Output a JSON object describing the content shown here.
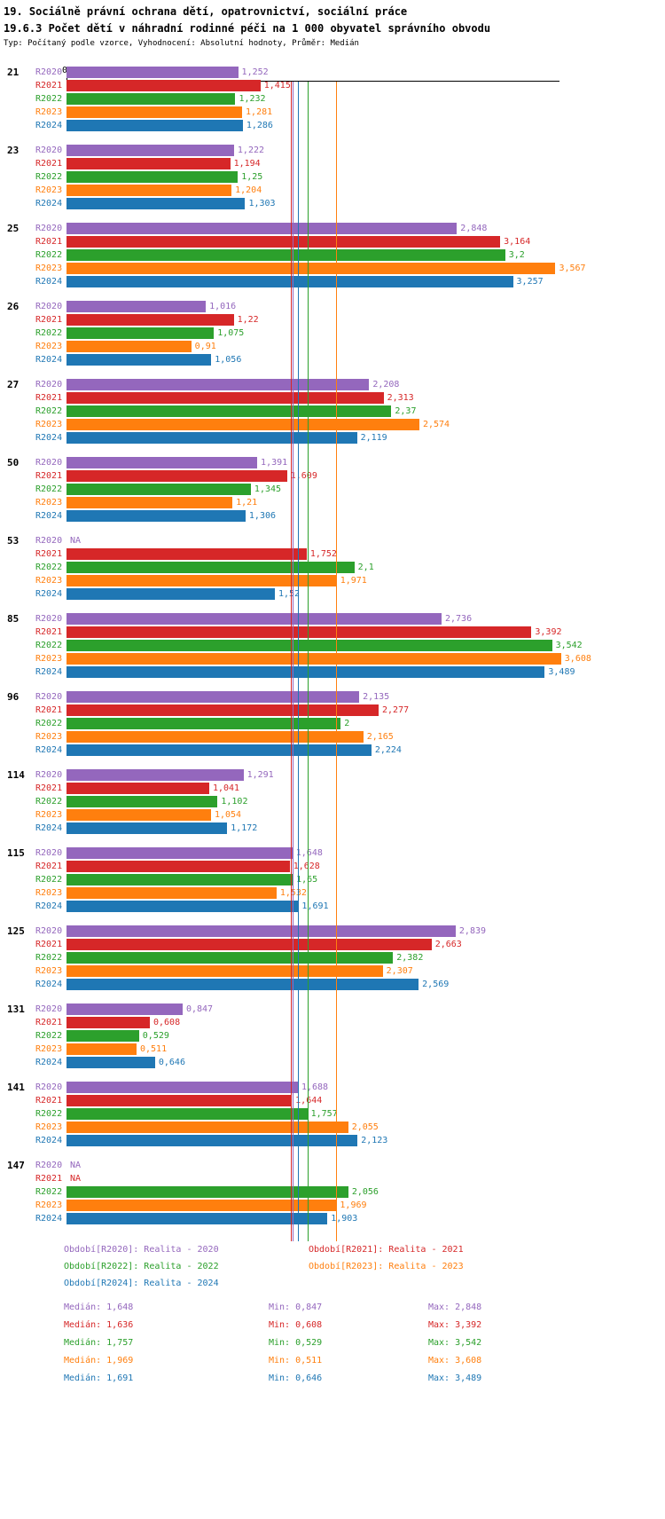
{
  "header": {
    "title1": "19. Sociálně právní ochrana dětí, opatrovnictví, sociální práce",
    "title2": "19.6.3 Počet dětí v náhradní rodinné péči na 1 000 obyvatel správního obvodu",
    "subtitle": "Typ: Počítaný podle vzorce, Vyhodnocení: Absolutní hodnoty, Průměr: Medián"
  },
  "chart_data": {
    "type": "bar",
    "orientation": "horizontal",
    "value_axis": {
      "zero_label": "0",
      "xlim": [
        0,
        3.608
      ]
    },
    "decimal_separator": ",",
    "na_label": "NA",
    "grid": false,
    "legend_position": "bottom",
    "stats_labels": {
      "median": "Medián",
      "min": "Min",
      "max": "Max"
    },
    "series": [
      {
        "key": "R2020",
        "legend": "Období[R2020]: Realita - 2020",
        "color": "#9467bd",
        "median": "1,648",
        "min": "0,847",
        "max": "2,848"
      },
      {
        "key": "R2021",
        "legend": "Období[R2021]: Realita - 2021",
        "color": "#d62728",
        "median": "1,636",
        "min": "0,608",
        "max": "3,392"
      },
      {
        "key": "R2022",
        "legend": "Období[R2022]: Realita - 2022",
        "color": "#2ca02c",
        "median": "1,757",
        "min": "0,529",
        "max": "3,542"
      },
      {
        "key": "R2023",
        "legend": "Období[R2023]: Realita - 2023",
        "color": "#ff7f0e",
        "median": "1,969",
        "min": "0,511",
        "max": "3,608"
      },
      {
        "key": "R2024",
        "legend": "Období[R2024]: Realita - 2024",
        "color": "#1f77b4",
        "median": "1,691",
        "min": "0,646",
        "max": "3,489"
      }
    ],
    "groups": [
      {
        "label": "21",
        "values": [
          "1,252",
          "1,415",
          "1,232",
          "1,281",
          "1,286"
        ]
      },
      {
        "label": "23",
        "values": [
          "1,222",
          "1,194",
          "1,25",
          "1,204",
          "1,303"
        ]
      },
      {
        "label": "25",
        "values": [
          "2,848",
          "3,164",
          "3,2",
          "3,567",
          "3,257"
        ]
      },
      {
        "label": "26",
        "values": [
          "1,016",
          "1,22",
          "1,075",
          "0,91",
          "1,056"
        ]
      },
      {
        "label": "27",
        "values": [
          "2,208",
          "2,313",
          "2,37",
          "2,574",
          "2,119"
        ]
      },
      {
        "label": "50",
        "values": [
          "1,391",
          "1,609",
          "1,345",
          "1,21",
          "1,306"
        ]
      },
      {
        "label": "53",
        "values": [
          "NA",
          "1,752",
          "2,1",
          "1,971",
          "1,52"
        ]
      },
      {
        "label": "85",
        "values": [
          "2,736",
          "3,392",
          "3,542",
          "3,608",
          "3,489"
        ]
      },
      {
        "label": "96",
        "values": [
          "2,135",
          "2,277",
          "2",
          "2,165",
          "2,224"
        ]
      },
      {
        "label": "114",
        "values": [
          "1,291",
          "1,041",
          "1,102",
          "1,054",
          "1,172"
        ]
      },
      {
        "label": "115",
        "values": [
          "1,648",
          "1,628",
          "1,65",
          "1,532",
          "1,691"
        ]
      },
      {
        "label": "125",
        "values": [
          "2,839",
          "2,663",
          "2,382",
          "2,307",
          "2,569"
        ]
      },
      {
        "label": "131",
        "values": [
          "0,847",
          "0,608",
          "0,529",
          "0,511",
          "0,646"
        ]
      },
      {
        "label": "141",
        "values": [
          "1,688",
          "1,644",
          "1,757",
          "2,055",
          "2,123"
        ]
      },
      {
        "label": "147",
        "values": [
          "NA",
          "NA",
          "2,056",
          "1,969",
          "1,903"
        ]
      }
    ]
  }
}
